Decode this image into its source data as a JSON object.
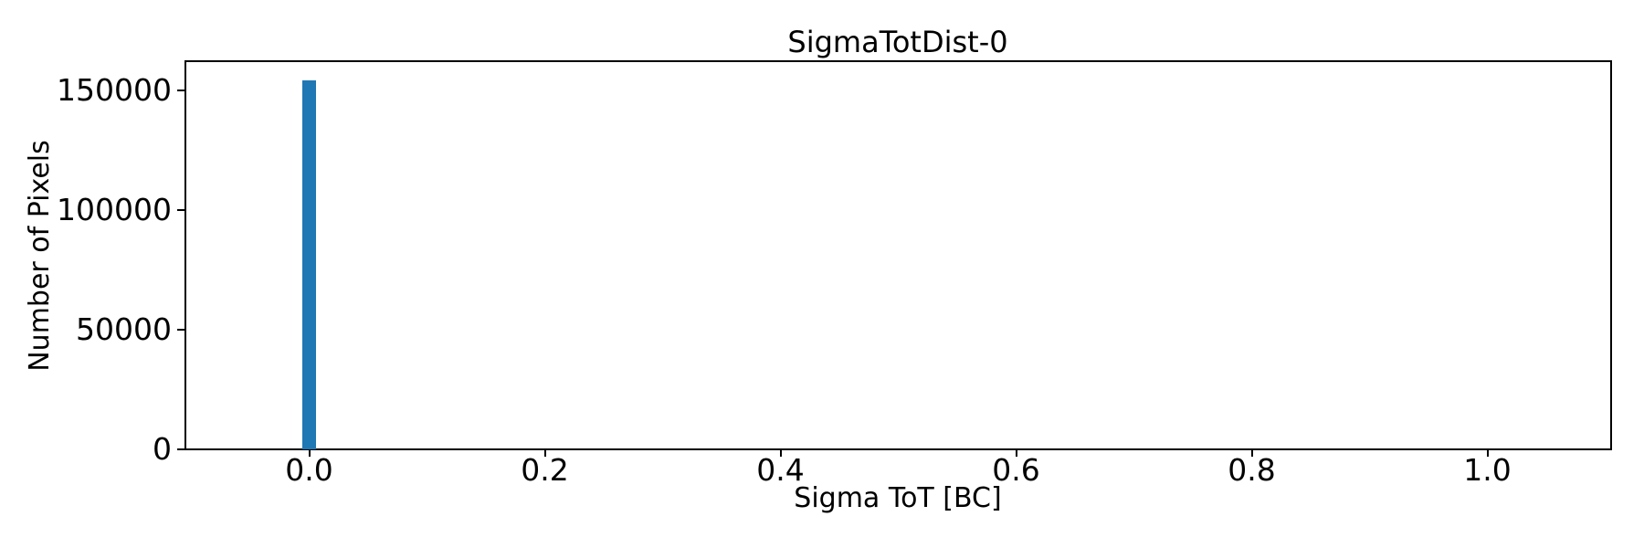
{
  "chart_data": {
    "type": "bar",
    "title": "SigmaTotDist-0",
    "xlabel": "Sigma ToT [BC]",
    "ylabel": "Number of Pixels",
    "xlim": [
      -0.105,
      1.105
    ],
    "ylim": [
      0,
      162000
    ],
    "xticks": [
      0.0,
      0.2,
      0.4,
      0.6,
      0.8,
      1.0
    ],
    "xtick_labels": [
      "0.0",
      "0.2",
      "0.4",
      "0.6",
      "0.8",
      "1.0"
    ],
    "yticks": [
      0,
      50000,
      100000,
      150000
    ],
    "ytick_labels": [
      "0",
      "50000",
      "100000",
      "150000"
    ],
    "bars": [
      {
        "x": 0.0,
        "width": 0.0116,
        "count": 153900
      }
    ],
    "grid": false,
    "legend": null,
    "colors": {
      "bar": "#1f77b4",
      "text": "#000000",
      "spines": "#000000",
      "background": "#ffffff"
    }
  }
}
